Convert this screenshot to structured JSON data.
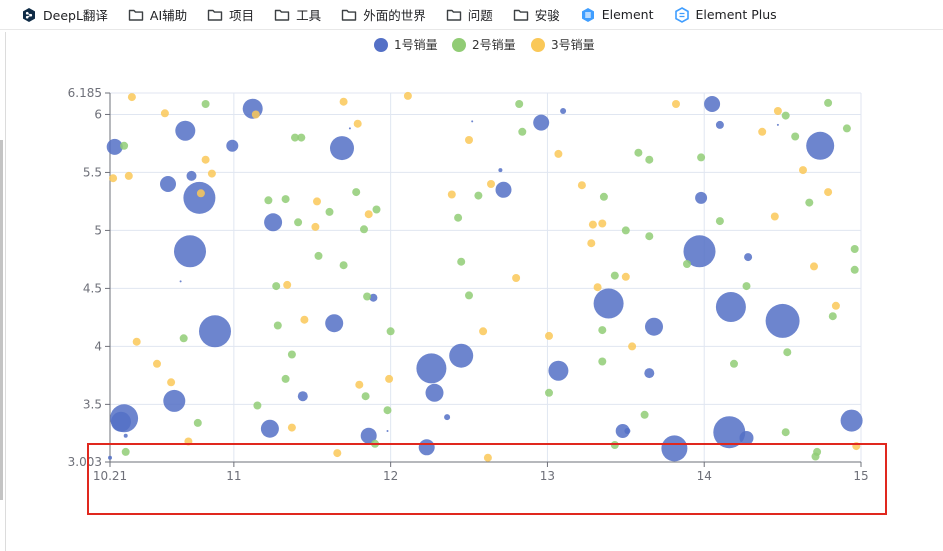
{
  "bookmarks": [
    {
      "label": "DeepL翻译",
      "icon": "deepl-icon"
    },
    {
      "label": "AI辅助",
      "icon": "folder-icon"
    },
    {
      "label": "项目",
      "icon": "folder-icon"
    },
    {
      "label": "工具",
      "icon": "folder-icon"
    },
    {
      "label": "外面的世界",
      "icon": "folder-icon"
    },
    {
      "label": "问题",
      "icon": "folder-icon"
    },
    {
      "label": "安骏",
      "icon": "folder-icon"
    },
    {
      "label": "Element",
      "icon": "element-icon"
    },
    {
      "label": "Element Plus",
      "icon": "element-plus-icon"
    }
  ],
  "colors": {
    "series1": "#5470c6",
    "series2": "#91cc75",
    "series3": "#fac858",
    "highlight": "#e0281e",
    "element_icon": "#409eff"
  },
  "chart_data": {
    "type": "scatter",
    "legend_position": "top-center",
    "grid": true,
    "xlim": [
      10.21,
      15
    ],
    "ylim": [
      3.003,
      6.185
    ],
    "x_ticks": [
      "10.21",
      "11",
      "12",
      "13",
      "14",
      "15"
    ],
    "y_ticks": [
      "3.003",
      "3.5",
      "4",
      "4.5",
      "5",
      "5.5",
      "6",
      "6.185"
    ],
    "series": [
      {
        "name": "1号销量",
        "points": [
          [
            10.21,
            3.04,
            2
          ],
          [
            10.28,
            3.35,
            10
          ],
          [
            10.3,
            3.38,
            14
          ],
          [
            10.31,
            3.23,
            2
          ],
          [
            10.24,
            5.72,
            8
          ],
          [
            10.58,
            5.4,
            8
          ],
          [
            10.69,
            5.86,
            10
          ],
          [
            10.73,
            5.47,
            5
          ],
          [
            10.78,
            5.28,
            16
          ],
          [
            10.99,
            5.73,
            6
          ],
          [
            10.72,
            4.82,
            16
          ],
          [
            10.66,
            4.56,
            1
          ],
          [
            10.88,
            4.13,
            16
          ],
          [
            10.62,
            3.53,
            11
          ],
          [
            11.12,
            6.05,
            10
          ],
          [
            11.25,
            5.07,
            9
          ],
          [
            11.23,
            3.29,
            9
          ],
          [
            11.44,
            3.57,
            5
          ],
          [
            11.64,
            4.2,
            9
          ],
          [
            11.69,
            5.71,
            12
          ],
          [
            11.74,
            5.88,
            1
          ],
          [
            11.89,
            4.42,
            4
          ],
          [
            11.86,
            3.23,
            8
          ],
          [
            11.98,
            3.27,
            1
          ],
          [
            12.23,
            3.13,
            8
          ],
          [
            12.26,
            3.81,
            15
          ],
          [
            12.45,
            3.92,
            12
          ],
          [
            12.28,
            3.6,
            9
          ],
          [
            12.36,
            3.39,
            3
          ],
          [
            12.52,
            5.94,
            1
          ],
          [
            12.7,
            5.52,
            2
          ],
          [
            12.72,
            5.35,
            8
          ],
          [
            12.96,
            5.93,
            8
          ],
          [
            13.1,
            6.03,
            3
          ],
          [
            13.07,
            3.79,
            10
          ],
          [
            13.39,
            4.37,
            15
          ],
          [
            13.48,
            3.27,
            7
          ],
          [
            13.51,
            3.27,
            3
          ],
          [
            13.68,
            4.17,
            9
          ],
          [
            13.65,
            3.77,
            5
          ],
          [
            13.81,
            3.12,
            13
          ],
          [
            13.97,
            4.82,
            16
          ],
          [
            13.98,
            5.28,
            6
          ],
          [
            14.05,
            6.09,
            8
          ],
          [
            14.1,
            5.91,
            4
          ],
          [
            14.17,
            4.34,
            15
          ],
          [
            14.16,
            3.26,
            16
          ],
          [
            14.27,
            3.21,
            7
          ],
          [
            14.28,
            4.77,
            4
          ],
          [
            14.5,
            4.22,
            17
          ],
          [
            14.47,
            5.91,
            1
          ],
          [
            14.74,
            5.73,
            14
          ],
          [
            14.94,
            3.36,
            11
          ]
        ]
      },
      {
        "name": "2号销量",
        "points": [
          [
            10.3,
            5.73,
            4
          ],
          [
            10.82,
            6.09,
            4
          ],
          [
            10.68,
            4.07,
            4
          ],
          [
            10.77,
            3.34,
            4
          ],
          [
            10.31,
            3.09,
            4
          ],
          [
            11.15,
            3.49,
            4
          ],
          [
            11.22,
            5.26,
            4
          ],
          [
            11.33,
            5.27,
            4
          ],
          [
            11.39,
            5.8,
            4
          ],
          [
            11.43,
            5.8,
            4
          ],
          [
            11.41,
            5.07,
            4
          ],
          [
            11.27,
            4.52,
            4
          ],
          [
            11.28,
            4.18,
            4
          ],
          [
            11.37,
            3.93,
            4
          ],
          [
            11.33,
            3.72,
            4
          ],
          [
            11.54,
            4.78,
            4
          ],
          [
            11.61,
            5.16,
            4
          ],
          [
            11.7,
            4.7,
            4
          ],
          [
            11.78,
            5.33,
            4
          ],
          [
            11.83,
            5.01,
            4
          ],
          [
            11.91,
            5.18,
            4
          ],
          [
            11.85,
            4.43,
            4
          ],
          [
            12.0,
            4.13,
            4
          ],
          [
            11.98,
            3.45,
            4
          ],
          [
            11.84,
            3.57,
            4
          ],
          [
            11.9,
            3.16,
            4
          ],
          [
            12.43,
            5.11,
            4
          ],
          [
            12.45,
            4.73,
            4
          ],
          [
            12.5,
            4.44,
            4
          ],
          [
            12.56,
            5.3,
            4
          ],
          [
            12.84,
            5.85,
            4
          ],
          [
            12.82,
            6.09,
            4
          ],
          [
            13.01,
            3.6,
            4
          ],
          [
            13.36,
            5.29,
            4
          ],
          [
            13.35,
            4.14,
            4
          ],
          [
            13.35,
            3.87,
            4
          ],
          [
            13.43,
            4.61,
            4
          ],
          [
            13.5,
            5.0,
            4
          ],
          [
            13.58,
            5.67,
            4
          ],
          [
            13.65,
            5.61,
            4
          ],
          [
            13.65,
            4.95,
            4
          ],
          [
            13.62,
            3.41,
            4
          ],
          [
            13.43,
            3.15,
            4
          ],
          [
            13.89,
            4.71,
            4
          ],
          [
            13.98,
            5.63,
            4
          ],
          [
            14.1,
            5.08,
            4
          ],
          [
            14.19,
            3.85,
            4
          ],
          [
            14.27,
            4.52,
            4
          ],
          [
            14.52,
            5.99,
            4
          ],
          [
            14.53,
            3.95,
            4
          ],
          [
            14.52,
            3.26,
            4
          ],
          [
            14.58,
            5.81,
            4
          ],
          [
            14.67,
            5.24,
            4
          ],
          [
            14.79,
            6.1,
            4
          ],
          [
            14.82,
            4.26,
            4
          ],
          [
            14.91,
            5.88,
            4
          ],
          [
            14.96,
            4.66,
            4
          ],
          [
            14.96,
            4.84,
            4
          ],
          [
            14.71,
            3.05,
            4
          ],
          [
            14.72,
            3.09,
            4
          ]
        ]
      },
      {
        "name": "3号销量",
        "points": [
          [
            10.23,
            5.45,
            4
          ],
          [
            10.35,
            6.15,
            4
          ],
          [
            10.33,
            5.47,
            4
          ],
          [
            10.38,
            4.04,
            4
          ],
          [
            10.51,
            3.85,
            4
          ],
          [
            10.56,
            6.01,
            4
          ],
          [
            10.6,
            3.69,
            4
          ],
          [
            10.71,
            3.18,
            4
          ],
          [
            10.79,
            5.32,
            4
          ],
          [
            10.82,
            5.61,
            4
          ],
          [
            10.86,
            5.49,
            4
          ],
          [
            11.14,
            6.0,
            4
          ],
          [
            11.34,
            4.53,
            4
          ],
          [
            11.37,
            3.3,
            4
          ],
          [
            11.45,
            4.23,
            4
          ],
          [
            11.53,
            5.25,
            4
          ],
          [
            11.52,
            5.03,
            4
          ],
          [
            11.7,
            6.11,
            4
          ],
          [
            11.79,
            5.92,
            4
          ],
          [
            11.86,
            5.14,
            4
          ],
          [
            11.8,
            3.67,
            4
          ],
          [
            11.99,
            3.72,
            4
          ],
          [
            11.66,
            3.08,
            4
          ],
          [
            12.11,
            6.16,
            4
          ],
          [
            12.39,
            5.31,
            4
          ],
          [
            12.5,
            5.78,
            4
          ],
          [
            12.59,
            4.13,
            4
          ],
          [
            12.62,
            3.04,
            4
          ],
          [
            12.64,
            5.4,
            4
          ],
          [
            12.8,
            4.59,
            4
          ],
          [
            13.01,
            4.09,
            4
          ],
          [
            13.07,
            5.66,
            4
          ],
          [
            13.22,
            5.39,
            4
          ],
          [
            13.28,
            4.89,
            4
          ],
          [
            13.29,
            5.05,
            4
          ],
          [
            13.32,
            4.51,
            4
          ],
          [
            13.35,
            5.06,
            4
          ],
          [
            13.5,
            4.6,
            4
          ],
          [
            13.54,
            4.0,
            4
          ],
          [
            13.82,
            6.09,
            4
          ],
          [
            14.37,
            5.85,
            4
          ],
          [
            14.45,
            5.12,
            4
          ],
          [
            14.47,
            6.03,
            4
          ],
          [
            14.63,
            5.52,
            4
          ],
          [
            14.7,
            4.69,
            4
          ],
          [
            14.79,
            5.33,
            4
          ],
          [
            14.84,
            4.35,
            4
          ],
          [
            14.97,
            3.14,
            4
          ]
        ]
      }
    ]
  }
}
